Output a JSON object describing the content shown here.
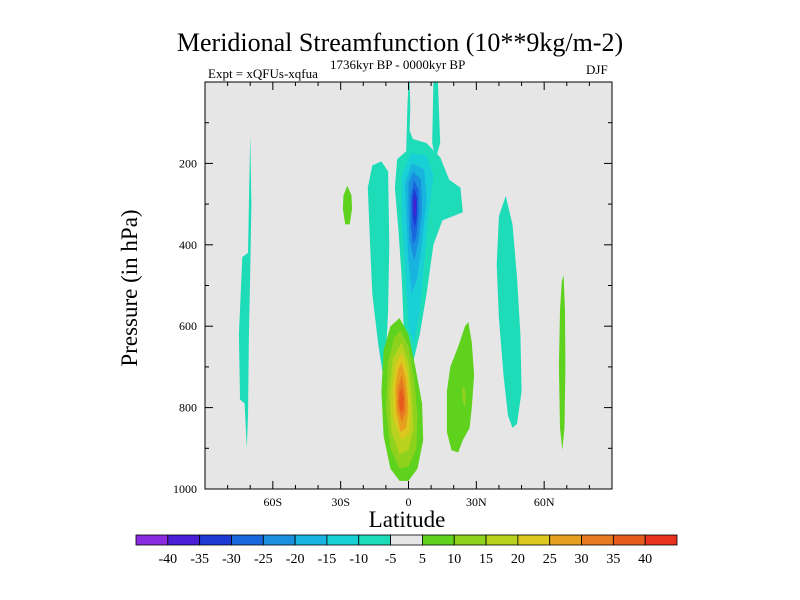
{
  "chart_data": {
    "type": "contour",
    "title": "Meridional Streamfunction (10**9kg/m-2)",
    "experiment": "Expt = xQFUs-xqfua",
    "period": "1736kyr BP - 0000kyr BP",
    "season": "DJF",
    "xlabel": "Latitude",
    "ylabel": "Pressure (in hPa)",
    "xlim": [
      -90,
      90
    ],
    "ylim": [
      1000,
      0
    ],
    "x_ticks": [
      {
        "value": -60,
        "label": "60S"
      },
      {
        "value": -30,
        "label": "30S"
      },
      {
        "value": 0,
        "label": "0"
      },
      {
        "value": 30,
        "label": "30N"
      },
      {
        "value": 60,
        "label": "60N"
      }
    ],
    "y_ticks": [
      {
        "value": 200,
        "label": "200"
      },
      {
        "value": 400,
        "label": "400"
      },
      {
        "value": 600,
        "label": "600"
      },
      {
        "value": 800,
        "label": "800"
      },
      {
        "value": 1000,
        "label": "1000"
      }
    ],
    "background": "#e6e6e6",
    "colorbar": {
      "labels": [
        "-40",
        "-35",
        "-30",
        "-25",
        "-20",
        "-15",
        "-10",
        "-5",
        "5",
        "10",
        "15",
        "20",
        "25",
        "30",
        "35",
        "40"
      ],
      "colors": [
        "#8a2be2",
        "#4b1fd6",
        "#1f3ad4",
        "#1a66dc",
        "#1a8fe0",
        "#19b3e0",
        "#19d0d6",
        "#1fdcb8",
        "#e6e6e6",
        "#5fd21e",
        "#8fd21e",
        "#b9d21e",
        "#dcc81e",
        "#e6a01e",
        "#e67a1e",
        "#e65a1e",
        "#e6321e"
      ]
    },
    "features": [
      {
        "name": "cyan-band-60S",
        "sign": "negative",
        "lat": [
          -75,
          -67
        ],
        "p": [
          130,
          900
        ],
        "levels": [
          -5
        ]
      },
      {
        "name": "green-patch-30S",
        "sign": "positive",
        "lat": [
          -29,
          -25
        ],
        "p": [
          255,
          350
        ],
        "levels": [
          5
        ]
      },
      {
        "name": "cyan-band-15S",
        "sign": "negative",
        "lat": [
          -18,
          -8
        ],
        "p": [
          195,
          730
        ],
        "levels": [
          -5
        ]
      },
      {
        "name": "negative-upper-core",
        "sign": "negative",
        "lat": [
          -6,
          25
        ],
        "p": [
          180,
          720
        ],
        "core_lat": 2,
        "core_p": 300,
        "min_level": -35
      },
      {
        "name": "positive-lower-core",
        "sign": "positive",
        "lat": [
          -12,
          7
        ],
        "p": [
          580,
          980
        ],
        "core_lat": -3,
        "core_p": 780,
        "max_level": 35
      },
      {
        "name": "green-band-20N",
        "sign": "positive",
        "lat": [
          17,
          30
        ],
        "p": [
          590,
          910
        ],
        "levels": [
          5,
          10
        ]
      },
      {
        "name": "cyan-band-45N",
        "sign": "negative",
        "lat": [
          39,
          50
        ],
        "p": [
          280,
          850
        ],
        "levels": [
          -5
        ]
      },
      {
        "name": "green-band-68N",
        "sign": "positive",
        "lat": [
          66,
          70
        ],
        "p": [
          475,
          905
        ],
        "levels": [
          5
        ]
      }
    ]
  }
}
